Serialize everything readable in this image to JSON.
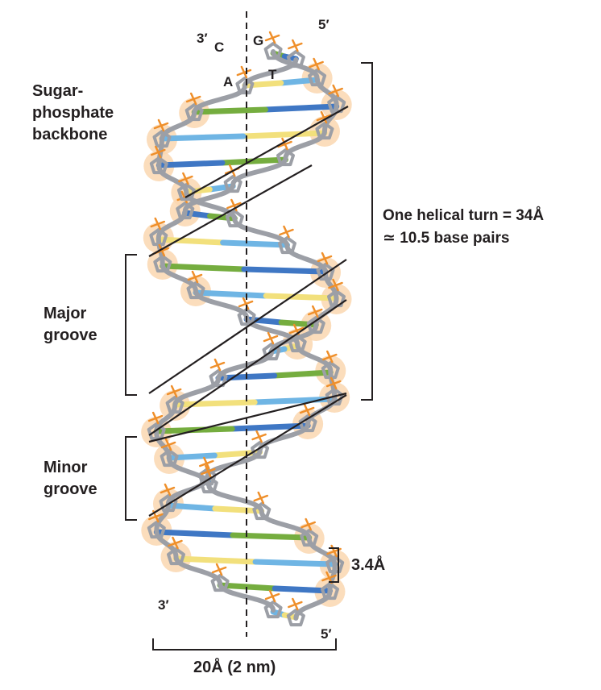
{
  "labels": {
    "backbone_line1": "Sugar-",
    "backbone_line2": "phosphate",
    "backbone_line3": "backbone",
    "major_line1": "Major",
    "major_line2": "groove",
    "minor_line1": "Minor",
    "minor_line2": "groove",
    "helical_turn_line1": "One helical turn = 34Å",
    "helical_turn_line2": "≃ 10.5 base pairs",
    "rise": "3.4Å",
    "width": "20Å (2 nm)",
    "strand_left_top": "3′",
    "strand_right_top": "5′",
    "strand_left_bottom": "3′",
    "strand_right_bottom": "5′",
    "base_c": "C",
    "base_g": "G",
    "base_a": "A",
    "base_t": "T"
  },
  "colors": {
    "backbone": "#9c9fa6",
    "phosphate_glow": "#fad7b0",
    "phosphate": "#ef8f2a",
    "base_green": "#75ad3f",
    "base_yellow": "#f2e07c",
    "base_light_blue": "#6fb5e4",
    "base_dark_blue": "#3f77c4",
    "line": "#231f20"
  }
}
